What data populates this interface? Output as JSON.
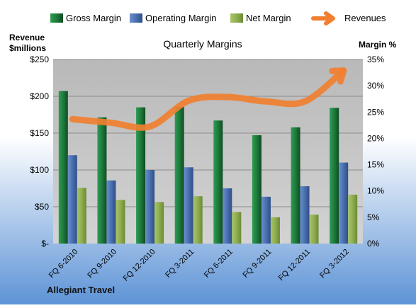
{
  "chart_data": {
    "type": "bar",
    "title": "Quarterly Margins",
    "left_axis_title": [
      "Revenue",
      "$millions"
    ],
    "right_axis_title": "Margin %",
    "footer": "Allegiant Travel",
    "categories": [
      "FQ 6-2010",
      "FQ 9-2010",
      "FQ 12-2010",
      "FQ 3-2011",
      "FQ 6-2011",
      "FQ 9-2011",
      "FQ 12-2011",
      "FQ 3-2012"
    ],
    "left_axis": {
      "min": 0,
      "max": 250,
      "ticks": [
        0,
        50,
        100,
        150,
        200,
        250
      ],
      "tick_labels": [
        "$-",
        "$50",
        "$100",
        "$150",
        "$200",
        "$250"
      ]
    },
    "right_axis": {
      "min": 0,
      "max": 35,
      "ticks": [
        0,
        5,
        10,
        15,
        20,
        25,
        30,
        35
      ],
      "tick_labels": [
        "0%",
        "5%",
        "10%",
        "15%",
        "20%",
        "25%",
        "30%",
        "35%"
      ]
    },
    "series": [
      {
        "name": "Gross Margin",
        "kind": "bar",
        "axis": "right",
        "unit": "%",
        "color": "#1e7a3c",
        "values": [
          29.0,
          24.0,
          25.9,
          26.0,
          23.4,
          20.6,
          22.1,
          25.8
        ]
      },
      {
        "name": "Operating Margin",
        "kind": "bar",
        "axis": "right",
        "unit": "%",
        "color": "#4a6fb0",
        "values": [
          16.8,
          12.0,
          14.0,
          14.5,
          10.5,
          8.9,
          10.9,
          15.4
        ]
      },
      {
        "name": "Net Margin",
        "kind": "bar",
        "axis": "right",
        "unit": "%",
        "color": "#8fae4f",
        "values": [
          10.6,
          8.3,
          7.9,
          9.0,
          6.0,
          5.0,
          5.5,
          9.3
        ]
      },
      {
        "name": "Revenues",
        "kind": "line",
        "axis": "left",
        "unit": "$ millions",
        "color": "#f08030",
        "values": [
          169,
          164,
          159,
          194,
          199,
          193,
          193,
          235
        ]
      }
    ],
    "grid": true,
    "legend_position": "top",
    "colors": {
      "plot_bg": "#c8c8c8",
      "page_bg": "#ffffff",
      "footer_bg": "#5d93d6"
    }
  }
}
